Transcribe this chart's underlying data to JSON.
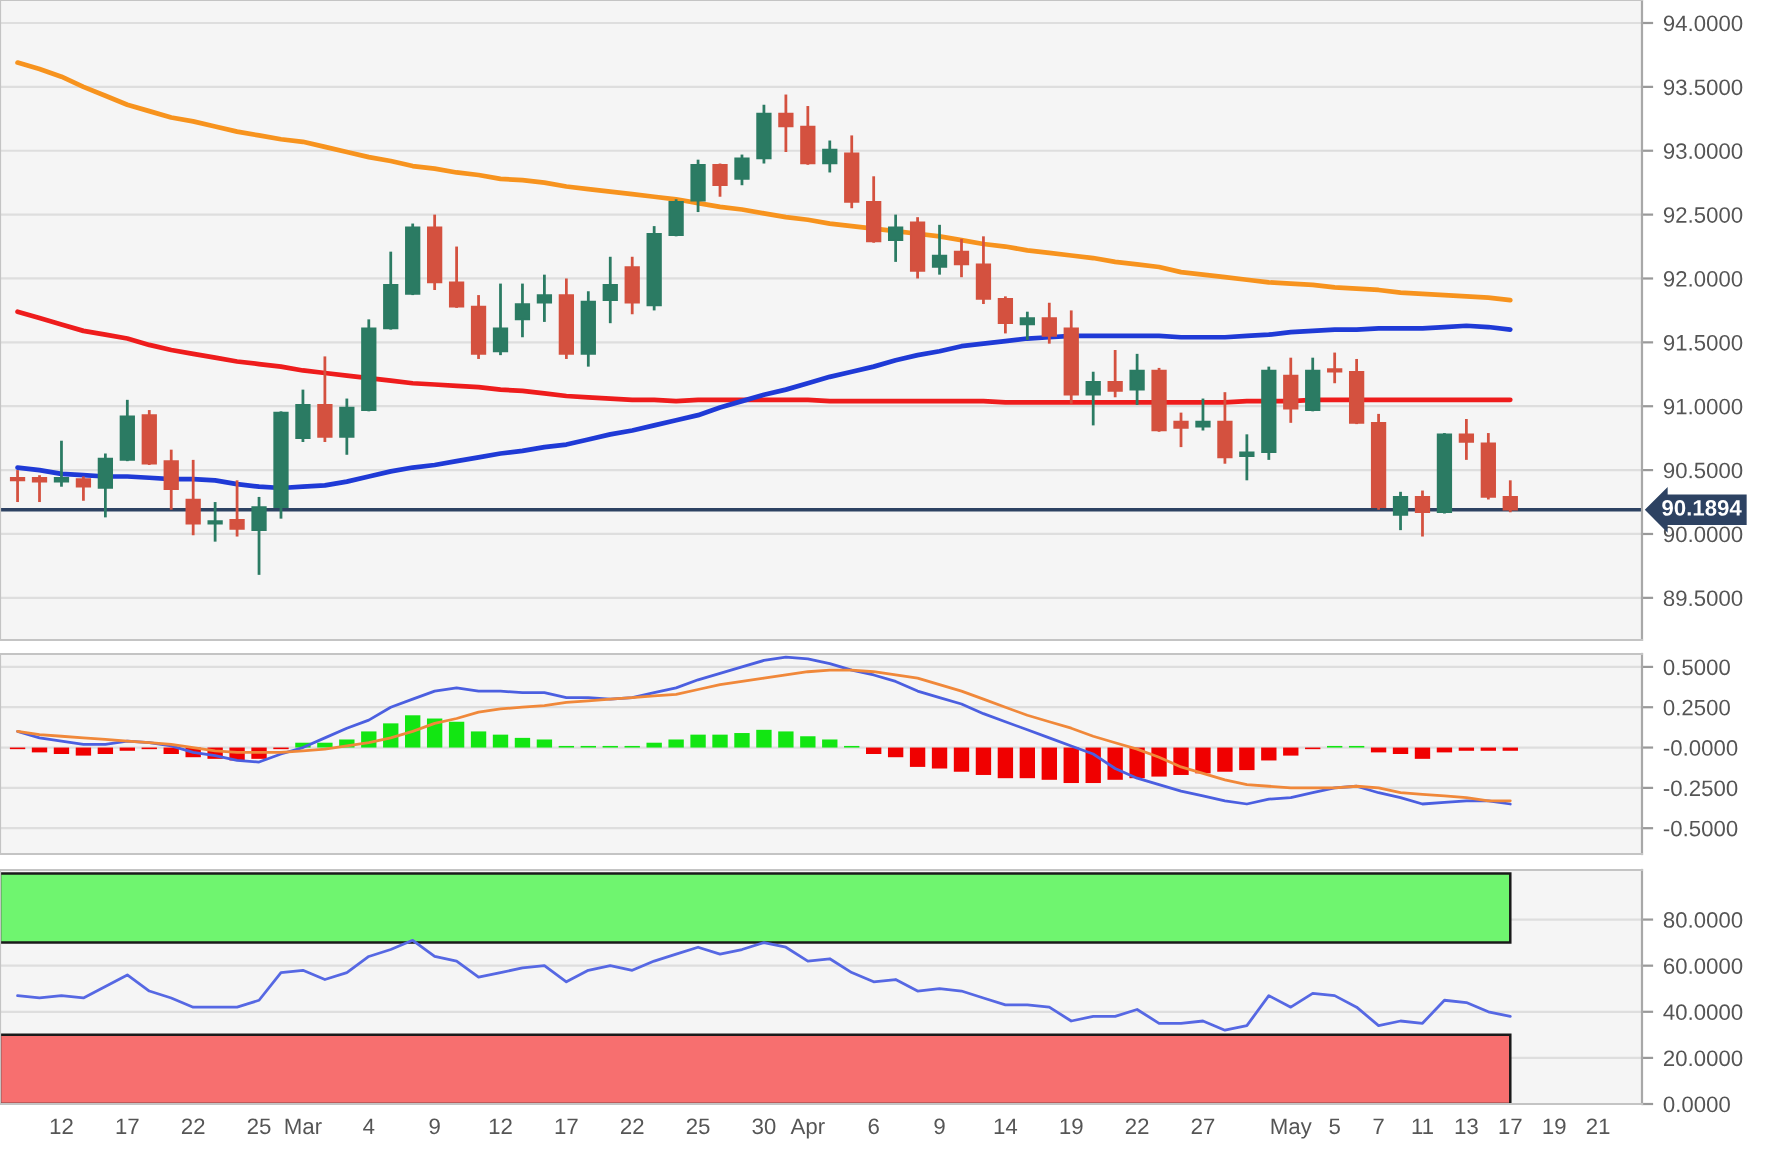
{
  "chart_data": [
    {
      "type": "candlestick",
      "categories": [
        null,
        null,
        null,
        null,
        null,
        null,
        null,
        null,
        null,
        null,
        null,
        null,
        null,
        null,
        null,
        null,
        null,
        null,
        null,
        null,
        null,
        null,
        null,
        null,
        null,
        null,
        null,
        null,
        null,
        null,
        null,
        null,
        null,
        null,
        null,
        null,
        null,
        null,
        null,
        null,
        null,
        null,
        null,
        null,
        null,
        null,
        null,
        null,
        null,
        null,
        null,
        null,
        null,
        null,
        null,
        null,
        null,
        null,
        null,
        null,
        null,
        null,
        null,
        null,
        null,
        null,
        null,
        null,
        null,
        null,
        null,
        null,
        null
      ],
      "ohlc": [
        [
          90.44,
          90.5,
          90.25,
          90.42
        ],
        [
          90.44,
          90.46,
          90.25,
          90.41
        ],
        [
          90.41,
          90.73,
          90.37,
          90.44
        ],
        [
          90.43,
          90.45,
          90.26,
          90.37
        ],
        [
          90.36,
          90.63,
          90.13,
          90.59
        ],
        [
          90.58,
          91.05,
          90.57,
          90.92
        ],
        [
          90.93,
          90.97,
          90.54,
          90.55
        ],
        [
          90.57,
          90.66,
          90.19,
          90.35
        ],
        [
          90.27,
          90.58,
          89.99,
          90.08
        ],
        [
          90.08,
          90.25,
          89.94,
          90.1
        ],
        [
          90.11,
          90.42,
          89.98,
          90.04
        ],
        [
          90.03,
          90.29,
          89.68,
          90.21
        ],
        [
          90.21,
          90.96,
          90.12,
          90.95
        ],
        [
          90.75,
          91.13,
          90.72,
          91.01
        ],
        [
          91.01,
          91.39,
          90.72,
          90.76
        ],
        [
          90.76,
          91.06,
          90.62,
          90.99
        ],
        [
          90.97,
          91.68,
          90.96,
          91.61
        ],
        [
          91.61,
          92.21,
          91.6,
          91.95
        ],
        [
          91.88,
          92.43,
          91.87,
          92.4
        ],
        [
          92.4,
          92.5,
          91.91,
          91.97
        ],
        [
          91.97,
          92.25,
          91.77,
          91.78
        ],
        [
          91.78,
          91.87,
          91.37,
          91.41
        ],
        [
          91.43,
          91.96,
          91.4,
          91.61
        ],
        [
          91.68,
          91.96,
          91.54,
          91.8
        ],
        [
          91.81,
          92.03,
          91.66,
          91.87
        ],
        [
          91.87,
          92.0,
          91.37,
          91.41
        ],
        [
          91.41,
          91.9,
          91.31,
          91.82
        ],
        [
          91.83,
          92.17,
          91.65,
          91.95
        ],
        [
          92.09,
          92.17,
          91.72,
          91.81
        ],
        [
          91.79,
          92.41,
          91.75,
          92.35
        ],
        [
          92.34,
          92.62,
          92.33,
          92.6
        ],
        [
          92.61,
          92.93,
          92.52,
          92.89
        ],
        [
          92.89,
          92.9,
          92.64,
          92.73
        ],
        [
          92.78,
          92.97,
          92.73,
          92.94
        ],
        [
          92.94,
          93.36,
          92.9,
          93.29
        ],
        [
          93.29,
          93.44,
          92.99,
          93.19
        ],
        [
          93.19,
          93.35,
          92.89,
          92.9
        ],
        [
          92.9,
          93.08,
          92.83,
          93.01
        ],
        [
          92.98,
          93.12,
          92.55,
          92.6
        ],
        [
          92.6,
          92.8,
          92.28,
          92.29
        ],
        [
          92.3,
          92.5,
          92.13,
          92.4
        ],
        [
          92.44,
          92.48,
          92.0,
          92.06
        ],
        [
          92.09,
          92.42,
          92.03,
          92.18
        ],
        [
          92.21,
          92.31,
          92.01,
          92.11
        ],
        [
          92.11,
          92.33,
          91.8,
          91.84
        ],
        [
          91.84,
          91.86,
          91.57,
          91.65
        ],
        [
          91.64,
          91.74,
          91.52,
          91.69
        ],
        [
          91.69,
          91.81,
          91.49,
          91.55
        ],
        [
          91.61,
          91.75,
          91.02,
          91.09
        ],
        [
          91.09,
          91.27,
          90.85,
          91.19
        ],
        [
          91.19,
          91.44,
          91.07,
          91.12
        ],
        [
          91.13,
          91.41,
          91.01,
          91.28
        ],
        [
          91.28,
          91.3,
          90.8,
          90.81
        ],
        [
          90.88,
          90.95,
          90.68,
          90.83
        ],
        [
          90.84,
          91.06,
          90.81,
          90.88
        ],
        [
          90.88,
          91.11,
          90.55,
          90.6
        ],
        [
          90.61,
          90.78,
          90.42,
          90.64
        ],
        [
          90.64,
          91.31,
          90.58,
          91.28
        ],
        [
          91.24,
          91.38,
          90.87,
          90.98
        ],
        [
          90.97,
          91.38,
          90.96,
          91.28
        ],
        [
          91.29,
          91.42,
          91.18,
          91.27
        ],
        [
          91.27,
          91.37,
          90.86,
          90.87
        ],
        [
          90.87,
          90.94,
          90.19,
          90.21
        ],
        [
          90.15,
          90.33,
          90.03,
          90.29
        ],
        [
          90.29,
          90.34,
          89.98,
          90.17
        ],
        [
          90.17,
          90.79,
          90.16,
          90.78
        ],
        [
          90.78,
          90.9,
          90.58,
          90.72
        ],
        [
          90.71,
          90.79,
          90.27,
          90.29
        ],
        [
          90.29,
          90.42,
          90.17,
          90.19
        ],
        null,
        null,
        null,
        null
      ],
      "colors": [
        "#d4513f",
        "#d4513f",
        "#2b7b63",
        "#d4513f",
        "#2b7b63",
        "#2b7b63",
        "#d4513f",
        "#d4513f",
        "#d4513f",
        "#2b7b63",
        "#d4513f",
        "#2b7b63",
        "#2b7b63",
        "#2b7b63",
        "#d4513f",
        "#2b7b63",
        "#2b7b63",
        "#2b7b63",
        "#2b7b63",
        "#d4513f",
        "#d4513f",
        "#d4513f",
        "#2b7b63",
        "#2b7b63",
        "#2b7b63",
        "#d4513f",
        "#2b7b63",
        "#2b7b63",
        "#d4513f",
        "#2b7b63",
        "#2b7b63",
        "#2b7b63",
        "#d4513f",
        "#2b7b63",
        "#2b7b63",
        "#d4513f",
        "#d4513f",
        "#2b7b63",
        "#d4513f",
        "#d4513f",
        "#2b7b63",
        "#d4513f",
        "#2b7b63",
        "#d4513f",
        "#d4513f",
        "#d4513f",
        "#2b7b63",
        "#d4513f",
        "#d4513f",
        "#2b7b63",
        "#d4513f",
        "#2b7b63",
        "#d4513f",
        "#d4513f",
        "#2b7b63",
        "#d4513f",
        "#2b7b63",
        "#2b7b63",
        "#d4513f",
        "#2b7b63",
        "#d4513f",
        "#d4513f",
        "#d4513f",
        "#2b7b63",
        "#d4513f",
        "#2b7b63",
        "#d4513f",
        "#d4513f",
        "#d4513f",
        null,
        null,
        null,
        null
      ],
      "series": [
        {
          "type": "line",
          "color": "#f7931e",
          "values": [
            93.69,
            93.64,
            93.58,
            93.5,
            93.43,
            93.36,
            93.31,
            93.26,
            93.23,
            93.19,
            93.15,
            93.12,
            93.09,
            93.07,
            93.03,
            92.99,
            92.95,
            92.92,
            92.88,
            92.86,
            92.83,
            92.81,
            92.78,
            92.77,
            92.75,
            92.72,
            92.7,
            92.68,
            92.66,
            92.64,
            92.62,
            92.59,
            92.56,
            92.54,
            92.51,
            92.48,
            92.46,
            92.43,
            92.41,
            92.39,
            92.37,
            92.35,
            92.33,
            92.3,
            92.27,
            92.25,
            92.22,
            92.2,
            92.18,
            92.16,
            92.13,
            92.11,
            92.09,
            92.05,
            92.03,
            92.01,
            91.99,
            91.97,
            91.96,
            91.95,
            91.93,
            91.92,
            91.91,
            91.89,
            91.88,
            91.87,
            91.86,
            91.85,
            91.83,
            null,
            null,
            null,
            null
          ]
        },
        {
          "type": "line",
          "color": "#ee1c1c",
          "values": [
            91.74,
            91.69,
            91.64,
            91.59,
            91.56,
            91.53,
            91.48,
            91.44,
            91.41,
            91.38,
            91.35,
            91.33,
            91.31,
            91.28,
            91.26,
            91.24,
            91.22,
            91.2,
            91.18,
            91.17,
            91.16,
            91.15,
            91.13,
            91.12,
            91.1,
            91.08,
            91.07,
            91.06,
            91.05,
            91.05,
            91.04,
            91.05,
            91.05,
            91.05,
            91.05,
            91.05,
            91.05,
            91.04,
            91.04,
            91.04,
            91.04,
            91.04,
            91.04,
            91.04,
            91.04,
            91.03,
            91.03,
            91.03,
            91.03,
            91.03,
            91.03,
            91.03,
            91.03,
            91.03,
            91.03,
            91.03,
            91.04,
            91.04,
            91.04,
            91.05,
            91.05,
            91.05,
            91.05,
            91.05,
            91.05,
            91.05,
            91.05,
            91.05,
            91.05,
            null,
            null,
            null,
            null
          ]
        },
        {
          "type": "line",
          "color": "#1f3ad6",
          "values": [
            90.52,
            90.5,
            90.47,
            90.46,
            90.45,
            90.45,
            90.44,
            90.43,
            90.43,
            90.42,
            90.39,
            90.37,
            90.36,
            90.37,
            90.38,
            90.41,
            90.45,
            90.49,
            90.52,
            90.54,
            90.57,
            90.6,
            90.63,
            90.65,
            90.68,
            90.7,
            90.74,
            90.78,
            90.81,
            90.85,
            90.89,
            90.93,
            90.99,
            91.04,
            91.09,
            91.13,
            91.18,
            91.23,
            91.27,
            91.31,
            91.36,
            91.4,
            91.43,
            91.47,
            91.49,
            91.51,
            91.53,
            91.54,
            91.55,
            91.55,
            91.55,
            91.55,
            91.55,
            91.54,
            91.54,
            91.54,
            91.55,
            91.56,
            91.58,
            91.59,
            91.6,
            91.6,
            91.61,
            91.61,
            91.61,
            91.62,
            91.63,
            91.62,
            91.6,
            null,
            null,
            null,
            null
          ]
        }
      ],
      "ylim": [
        89.17,
        94.18
      ],
      "yticks": [
        {
          "value": 89.5,
          "label": "89.5000"
        },
        {
          "value": 90,
          "label": "90.0000"
        },
        {
          "value": 90.5,
          "label": "90.5000"
        },
        {
          "value": 91,
          "label": "91.0000"
        },
        {
          "value": 91.5,
          "label": "91.5000"
        },
        {
          "value": 92,
          "label": "92.0000"
        },
        {
          "value": 92.5,
          "label": "92.5000"
        },
        {
          "value": 93,
          "label": "93.0000"
        },
        {
          "value": 93.5,
          "label": "93.5000"
        },
        {
          "value": 94,
          "label": "94.0000"
        }
      ],
      "grid": "y",
      "tick_labels": "y",
      "ref_lines": [
        {
          "axis": "y",
          "value": 90.1894,
          "label": "90.1894",
          "color": "#2d4262"
        }
      ]
    },
    {
      "type": "bar",
      "categories": [
        null,
        null,
        null,
        null,
        null,
        null,
        null,
        null,
        null,
        null,
        null,
        null,
        null,
        null,
        null,
        null,
        null,
        null,
        null,
        null,
        null,
        null,
        null,
        null,
        null,
        null,
        null,
        null,
        null,
        null,
        null,
        null,
        null,
        null,
        null,
        null,
        null,
        null,
        null,
        null,
        null,
        null,
        null,
        null,
        null,
        null,
        null,
        null,
        null,
        null,
        null,
        null,
        null,
        null,
        null,
        null,
        null,
        null,
        null,
        null,
        null,
        null,
        null,
        null,
        null,
        null,
        null,
        null,
        null,
        null,
        null,
        null,
        null
      ],
      "series": [
        {
          "values": [
            -0.01,
            -0.03,
            -0.04,
            -0.05,
            -0.04,
            -0.02,
            -0.01,
            -0.04,
            -0.06,
            -0.07,
            -0.08,
            -0.07,
            -0.01,
            0.03,
            0.03,
            0.05,
            0.1,
            0.15,
            0.2,
            0.18,
            0.16,
            0.1,
            0.08,
            0.06,
            0.05,
            0.01,
            0.01,
            0.01,
            0.01,
            0.03,
            0.05,
            0.08,
            0.08,
            0.09,
            0.11,
            0.1,
            0.07,
            0.05,
            0.01,
            -0.04,
            -0.06,
            -0.12,
            -0.13,
            -0.15,
            -0.17,
            -0.19,
            -0.19,
            -0.2,
            -0.22,
            -0.22,
            -0.2,
            -0.19,
            -0.18,
            -0.17,
            -0.16,
            -0.15,
            -0.14,
            -0.08,
            -0.05,
            -0.01,
            0.01,
            0.01,
            -0.03,
            -0.04,
            -0.07,
            -0.03,
            -0.02,
            -0.02,
            -0.02,
            null,
            null,
            null,
            null
          ],
          "colors": [
            "#f00000",
            "#f00000",
            "#f00000",
            "#f00000",
            "#f00000",
            "#f00000",
            "#f00000",
            "#f00000",
            "#f00000",
            "#f00000",
            "#f00000",
            "#f00000",
            "#f00000",
            "#12e612",
            "#12e612",
            "#12e612",
            "#12e612",
            "#12e612",
            "#12e612",
            "#12e612",
            "#12e612",
            "#12e612",
            "#12e612",
            "#12e612",
            "#12e612",
            "#12e612",
            "#12e612",
            "#12e612",
            "#12e612",
            "#12e612",
            "#12e612",
            "#12e612",
            "#12e612",
            "#12e612",
            "#12e612",
            "#12e612",
            "#12e612",
            "#12e612",
            "#12e612",
            "#f00000",
            "#f00000",
            "#f00000",
            "#f00000",
            "#f00000",
            "#f00000",
            "#f00000",
            "#f00000",
            "#f00000",
            "#f00000",
            "#f00000",
            "#f00000",
            "#f00000",
            "#f00000",
            "#f00000",
            "#f00000",
            "#f00000",
            "#f00000",
            "#f00000",
            "#f00000",
            "#f00000",
            "#12e612",
            "#12e612",
            "#f00000",
            "#f00000",
            "#f00000",
            "#f00000",
            "#f00000",
            "#f00000",
            "#f00000",
            null,
            null,
            null,
            null
          ]
        },
        {
          "type": "line",
          "color": "#4b5fe0",
          "values": [
            0.1,
            0.06,
            0.04,
            0.02,
            0.02,
            0.04,
            0.03,
            0.01,
            -0.03,
            -0.05,
            -0.08,
            -0.09,
            -0.04,
            0.0,
            0.06,
            0.12,
            0.17,
            0.25,
            0.3,
            0.35,
            0.37,
            0.35,
            0.35,
            0.34,
            0.34,
            0.31,
            0.31,
            0.3,
            0.31,
            0.34,
            0.37,
            0.42,
            0.46,
            0.5,
            0.54,
            0.56,
            0.55,
            0.52,
            0.48,
            0.45,
            0.41,
            0.35,
            0.31,
            0.27,
            0.21,
            0.16,
            0.11,
            0.06,
            0.01,
            -0.04,
            -0.13,
            -0.19,
            -0.23,
            -0.27,
            -0.3,
            -0.33,
            -0.35,
            -0.32,
            -0.31,
            -0.28,
            -0.25,
            -0.24,
            -0.28,
            -0.31,
            -0.35,
            -0.34,
            -0.33,
            -0.33,
            -0.35,
            null,
            null,
            null,
            null
          ]
        },
        {
          "type": "line",
          "color": "#f0883a",
          "values": [
            0.1,
            0.08,
            0.07,
            0.06,
            0.05,
            0.04,
            0.03,
            0.02,
            0.0,
            -0.02,
            -0.03,
            -0.03,
            -0.03,
            -0.02,
            -0.01,
            0.01,
            0.03,
            0.06,
            0.1,
            0.15,
            0.18,
            0.22,
            0.24,
            0.25,
            0.26,
            0.28,
            0.29,
            0.3,
            0.31,
            0.32,
            0.33,
            0.36,
            0.39,
            0.41,
            0.43,
            0.45,
            0.47,
            0.48,
            0.48,
            0.47,
            0.45,
            0.43,
            0.39,
            0.35,
            0.3,
            0.25,
            0.2,
            0.16,
            0.12,
            0.07,
            0.03,
            -0.01,
            -0.06,
            -0.12,
            -0.16,
            -0.2,
            -0.23,
            -0.24,
            -0.25,
            -0.25,
            -0.25,
            -0.24,
            -0.25,
            -0.28,
            -0.29,
            -0.3,
            -0.31,
            -0.33,
            -0.33,
            null,
            null,
            null,
            null
          ]
        }
      ],
      "ylim": [
        -0.66,
        0.58
      ],
      "yticks": [
        {
          "value": -0.5,
          "label": "-0.5000"
        },
        {
          "value": -0.25,
          "label": "-0.2500"
        },
        {
          "value": 0,
          "label": "-0.0000"
        },
        {
          "value": 0.25,
          "label": "0.2500"
        },
        {
          "value": 0.5,
          "label": "0.5000"
        }
      ],
      "grid": "y",
      "tick_labels": "y"
    },
    {
      "type": "line",
      "categories": [
        null,
        null,
        "12",
        null,
        null,
        "17",
        null,
        null,
        "22",
        null,
        null,
        "25",
        null,
        "Mar",
        null,
        null,
        "4",
        null,
        null,
        "9",
        null,
        null,
        "12",
        null,
        null,
        "17",
        null,
        null,
        "22",
        null,
        null,
        "25",
        null,
        null,
        "30",
        null,
        "Apr",
        null,
        null,
        "6",
        null,
        null,
        "9",
        null,
        null,
        "14",
        null,
        null,
        "19",
        null,
        null,
        "22",
        null,
        null,
        "27",
        null,
        null,
        null,
        "May",
        null,
        "5",
        null,
        "7",
        null,
        "11",
        null,
        "13",
        null,
        "17",
        null,
        "19",
        null,
        "21"
      ],
      "series": [
        {
          "color": "#5668e3",
          "values": [
            47,
            46,
            47,
            46,
            51,
            56,
            49,
            46,
            42,
            42,
            42,
            45,
            57,
            58,
            54,
            57,
            64,
            67,
            71,
            64,
            62,
            55,
            57,
            59,
            60,
            53,
            58,
            60,
            58,
            62,
            65,
            68,
            65,
            67,
            70,
            68,
            62,
            63,
            57,
            53,
            54,
            49,
            50,
            49,
            46,
            43,
            43,
            42,
            36,
            38,
            38,
            41,
            35,
            35,
            36,
            32,
            34,
            47,
            42,
            48,
            47,
            42,
            34,
            36,
            35,
            45,
            44,
            40,
            38,
            null,
            null,
            null,
            null
          ]
        }
      ],
      "bands": [
        {
          "axis": "y",
          "from": 70,
          "to": 100,
          "color": "#6ff56f"
        },
        {
          "axis": "y",
          "from": 0,
          "to": 30,
          "color": "#f76f6f"
        }
      ],
      "ylim": [
        0,
        101.5
      ],
      "yticks": [
        {
          "value": 0,
          "label": "0.0000"
        },
        {
          "value": 20,
          "label": "20.0000"
        },
        {
          "value": 40,
          "label": "40.0000"
        },
        {
          "value": 60,
          "label": "60.0000"
        },
        {
          "value": 80,
          "label": "80.0000"
        }
      ],
      "grid": "y"
    }
  ]
}
